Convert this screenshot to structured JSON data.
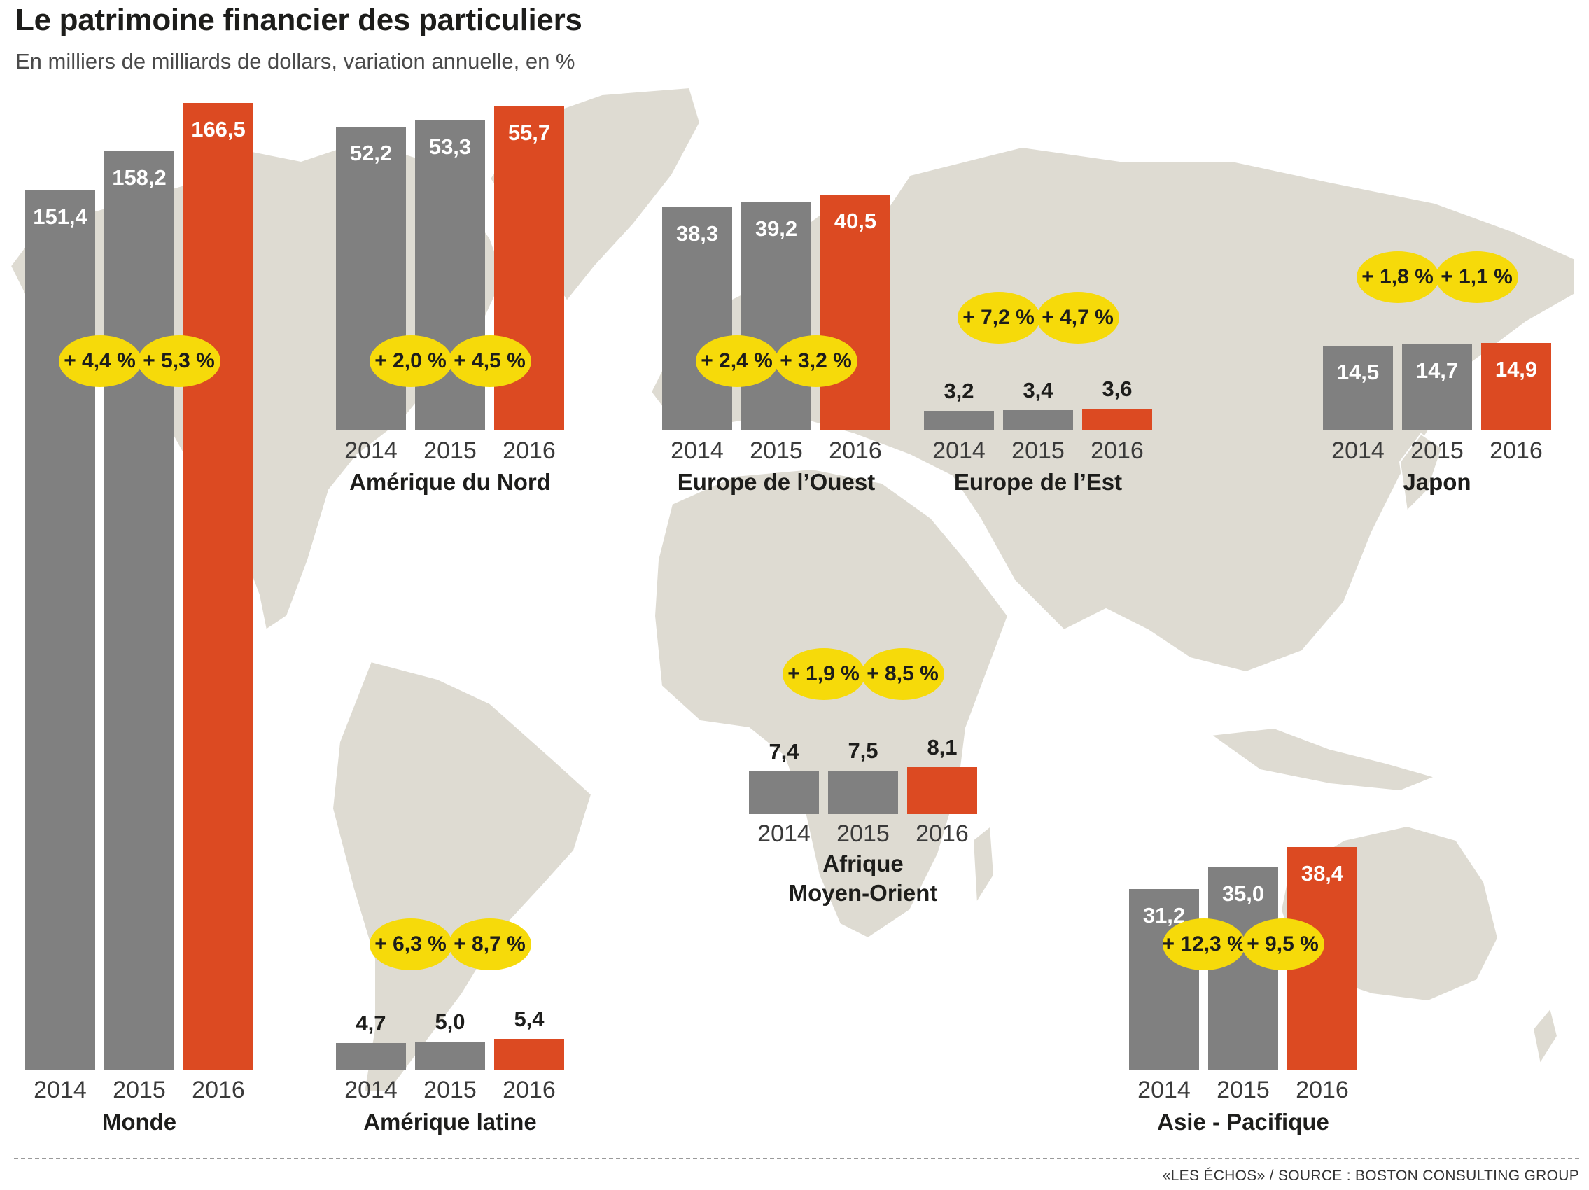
{
  "title": "Le patrimoine financier des particuliers",
  "subtitle": "En milliers de milliards de dollars, variation annuelle, en %",
  "source": "«LES ÉCHOS» / SOURCE : BOSTON CONSULTING GROUP",
  "colors": {
    "past": "#808080",
    "current": "#dc4a22",
    "bubble": "#f6da0a",
    "map": "#dedbd2"
  },
  "chart_data": [
    {
      "type": "bar",
      "region": "Monde",
      "categories": [
        "2014",
        "2015",
        "2016"
      ],
      "values": [
        151.4,
        158.2,
        166.5
      ],
      "labels": [
        "151,4",
        "158,2",
        "166,5"
      ],
      "growth": [
        "+ 4,4 %",
        "+ 5,3 %"
      ]
    },
    {
      "type": "bar",
      "region": "Amérique du Nord",
      "categories": [
        "2014",
        "2015",
        "2016"
      ],
      "values": [
        52.2,
        53.3,
        55.7
      ],
      "labels": [
        "52,2",
        "53,3",
        "55,7"
      ],
      "growth": [
        "+ 2,0 %",
        "+ 4,5 %"
      ]
    },
    {
      "type": "bar",
      "region": "Europe de l’Ouest",
      "categories": [
        "2014",
        "2015",
        "2016"
      ],
      "values": [
        38.3,
        39.2,
        40.5
      ],
      "labels": [
        "38,3",
        "39,2",
        "40,5"
      ],
      "growth": [
        "+ 2,4 %",
        "+ 3,2 %"
      ]
    },
    {
      "type": "bar",
      "region": "Europe de l’Est",
      "categories": [
        "2014",
        "2015",
        "2016"
      ],
      "values": [
        3.2,
        3.4,
        3.6
      ],
      "labels": [
        "3,2",
        "3,4",
        "3,6"
      ],
      "growth": [
        "+ 7,2 %",
        "+ 4,7 %"
      ]
    },
    {
      "type": "bar",
      "region": "Japon",
      "categories": [
        "2014",
        "2015",
        "2016"
      ],
      "values": [
        14.5,
        14.7,
        14.9
      ],
      "labels": [
        "14,5",
        "14,7",
        "14,9"
      ],
      "growth": [
        "+ 1,8 %",
        "+ 1,1 %"
      ]
    },
    {
      "type": "bar",
      "region": "Afrique Moyen-Orient",
      "categories": [
        "2014",
        "2015",
        "2016"
      ],
      "values": [
        7.4,
        7.5,
        8.1
      ],
      "labels": [
        "7,4",
        "7,5",
        "8,1"
      ],
      "growth": [
        "+ 1,9 %",
        "+ 8,5 %"
      ]
    },
    {
      "type": "bar",
      "region": "Amérique latine",
      "categories": [
        "2014",
        "2015",
        "2016"
      ],
      "values": [
        4.7,
        5.0,
        5.4
      ],
      "labels": [
        "4,7",
        "5,0",
        "5,4"
      ],
      "growth": [
        "+ 6,3 %",
        "+ 8,7 %"
      ]
    },
    {
      "type": "bar",
      "region": "Asie - Pacifique",
      "categories": [
        "2014",
        "2015",
        "2016"
      ],
      "values": [
        31.2,
        35.0,
        38.4
      ],
      "labels": [
        "31,2",
        "35,0",
        "38,4"
      ],
      "growth": [
        "+ 12,3 %",
        "+ 9,5 %"
      ]
    }
  ]
}
